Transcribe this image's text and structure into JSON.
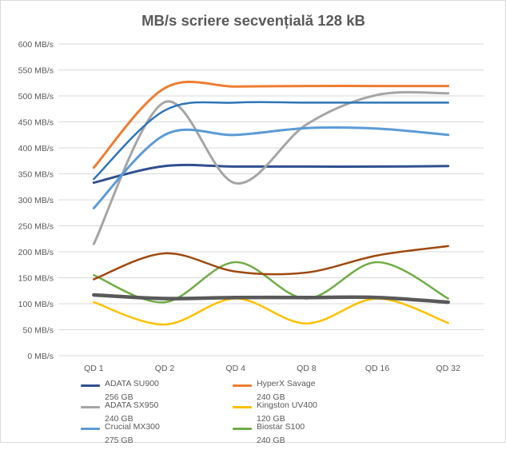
{
  "chart_data": {
    "type": "line",
    "title": "MB/s scriere secvențială  128 kB",
    "categories": [
      "QD 1",
      "QD 2",
      "QD 4",
      "QD 8",
      "QD 16",
      "QD 32"
    ],
    "ylim": [
      0,
      600
    ],
    "yticks": [
      0,
      50,
      100,
      150,
      200,
      250,
      300,
      350,
      400,
      450,
      500,
      550,
      600
    ],
    "ytick_labels": [
      "0 MB/s",
      "50 MB/s",
      "100 MB/s",
      "150 MB/s",
      "200 MB/s",
      "250 MB/s",
      "300 MB/s",
      "350 MB/s",
      "400 MB/s",
      "450 MB/s",
      "500 MB/s",
      "550 MB/s",
      "600 MB/s"
    ],
    "grid": true,
    "legend_position": "bottom",
    "series": [
      {
        "name": "ADATA SU900",
        "sub": "256 GB",
        "color": "#2f4f8f",
        "values": [
          333,
          365,
          364,
          364,
          364,
          365
        ]
      },
      {
        "name": "HyperX Savage",
        "sub": "240 GB",
        "color": "#ed7d31",
        "values": [
          362,
          515,
          518,
          519,
          519,
          519
        ]
      },
      {
        "name": "ADATA SX950",
        "sub": "240 GB",
        "color": "#a5a5a5",
        "values": [
          215,
          488,
          332,
          445,
          502,
          505
        ]
      },
      {
        "name": "Kingston UV400",
        "sub": "120 GB",
        "color": "#ffc000",
        "values": [
          103,
          60,
          110,
          62,
          110,
          63
        ]
      },
      {
        "name": "Crucial MX300",
        "sub": "275 GB",
        "color": "#5b9bd5",
        "values": [
          284,
          425,
          425,
          438,
          437,
          425
        ]
      },
      {
        "name": "Biostar S100",
        "sub": "240 GB",
        "color": "#70ad47",
        "values": [
          155,
          103,
          180,
          110,
          180,
          110
        ]
      },
      {
        "name": "",
        "sub": "",
        "color": "#2e75b6",
        "values": [
          340,
          472,
          487,
          487,
          487,
          487
        ]
      },
      {
        "name": "",
        "sub": "",
        "color": "#9e480e",
        "values": [
          147,
          197,
          162,
          160,
          193,
          211
        ]
      },
      {
        "name": "",
        "sub": "",
        "color": "#595959",
        "values": [
          117,
          110,
          112,
          112,
          112,
          103
        ]
      }
    ]
  }
}
